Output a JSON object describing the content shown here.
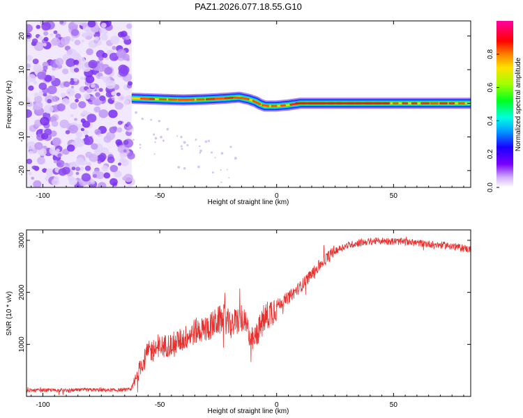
{
  "title": "PAZ1.2026.077.18.55.G10",
  "colors": {
    "snr_line": "#e8302e",
    "background": "#ffffff",
    "axis": "#000000",
    "noise_light": "#c9a8f0",
    "noise_dark": "#7a2ef0"
  },
  "chart_data": [
    {
      "type": "heatmap",
      "name": "spectrogram",
      "xlabel": "Height of straight line (km)",
      "ylabel": "Frequency (Hz)",
      "xlim": [
        -107,
        83
      ],
      "ylim": [
        -25,
        24.5
      ],
      "xticks": [
        -100,
        -50,
        0,
        50
      ],
      "xtick_labels": [
        "-100",
        "-50",
        "0",
        "50"
      ],
      "yticks": [
        -20,
        -10,
        0,
        10,
        20
      ],
      "ytick_labels": [
        "-20",
        "-10",
        "0",
        "10",
        "20"
      ],
      "noise_region_x": [
        -107,
        -62
      ],
      "signal_track": {
        "x": [
          -62,
          -50,
          -40,
          -30,
          -22,
          -16,
          -12,
          -9,
          -7,
          -5,
          0,
          5,
          10,
          20,
          40,
          60,
          83
        ],
        "y": [
          1.5,
          1.2,
          1.0,
          1.2,
          1.5,
          1.8,
          1.2,
          0.5,
          -0.3,
          -0.8,
          -0.8,
          -0.5,
          0.0,
          0.0,
          0.0,
          0.0,
          0.0
        ]
      },
      "colorbar": {
        "label": "Normalized spectral amplitude",
        "ticks": [
          0.0,
          0.2,
          0.4,
          0.6,
          0.8
        ],
        "tick_labels": [
          "0.0",
          "0.2",
          "0.4",
          "0.6",
          "0.8"
        ],
        "range": [
          0,
          1
        ]
      }
    },
    {
      "type": "line",
      "name": "snr",
      "xlabel": "Height of straight line (km)",
      "ylabel": "SNR (10 * v/v)",
      "xlim": [
        -107,
        83
      ],
      "ylim": [
        0,
        3200
      ],
      "xticks": [
        -100,
        -50,
        0,
        50
      ],
      "xtick_labels": [
        "-100",
        "-50",
        "0",
        "50"
      ],
      "yticks": [
        1000,
        2000,
        3000
      ],
      "ytick_labels": [
        "1000",
        "2000",
        "3000"
      ],
      "series": [
        {
          "name": "SNR",
          "x": [
            -107,
            -100,
            -90,
            -80,
            -70,
            -62,
            -60,
            -58,
            -55,
            -50,
            -45,
            -40,
            -35,
            -30,
            -25,
            -22,
            -20,
            -17,
            -15,
            -12,
            -10,
            -8,
            -5,
            -2,
            0,
            5,
            10,
            15,
            20,
            25,
            30,
            35,
            40,
            45,
            50,
            55,
            60,
            65,
            70,
            75,
            80,
            83
          ],
          "y": [
            110,
            120,
            115,
            125,
            120,
            130,
            350,
            600,
            850,
            950,
            1000,
            1100,
            1250,
            1300,
            1450,
            1500,
            1350,
            1450,
            1500,
            1250,
            1050,
            1250,
            1500,
            1650,
            1750,
            1900,
            2100,
            2350,
            2600,
            2800,
            2900,
            2950,
            2980,
            2990,
            2980,
            2970,
            2950,
            2930,
            2910,
            2890,
            2850,
            2820
          ]
        }
      ]
    }
  ]
}
